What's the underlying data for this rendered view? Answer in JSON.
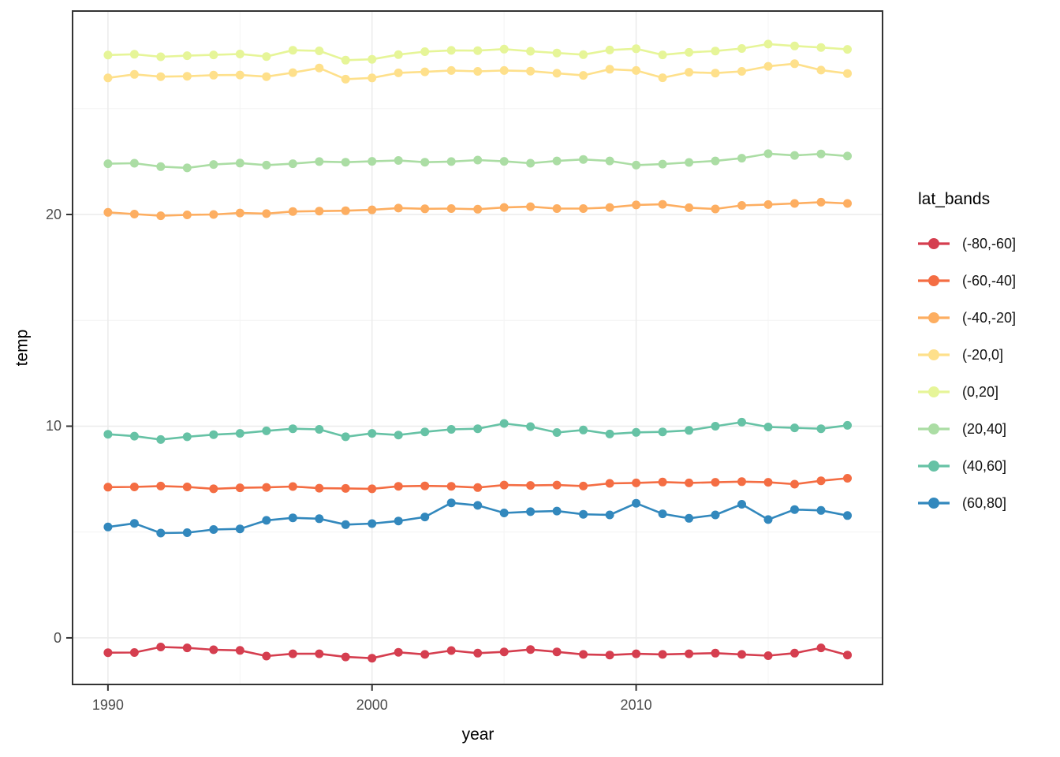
{
  "figure": {
    "background": "#ffffff"
  },
  "style": {
    "panel_border_color": "#333333",
    "panel_background": "#ffffff",
    "grid_major_color": "#ebebeb",
    "grid_minor_color": "#f4f4f4",
    "tick_mark_color": "#333333",
    "tick_label_color": "#4d4d4d",
    "axis_title_color": "#000000",
    "line_width": 2.6,
    "point_radius": 5.5
  },
  "legend": {
    "title": "lat_bands"
  },
  "chart_data": {
    "type": "line",
    "title": "",
    "xlabel": "year",
    "ylabel": "temp",
    "xlim": [
      1988.66,
      2019.33
    ],
    "ylim": [
      -2.2,
      29.61
    ],
    "x_ticks": [
      1990,
      2000,
      2010
    ],
    "x_minor_ticks": [
      1995,
      2005,
      2015
    ],
    "y_ticks": [
      0,
      10,
      20
    ],
    "y_minor_ticks": [
      5,
      15,
      25
    ],
    "grid": true,
    "legend_position": "right",
    "legend_title": "lat_bands",
    "x": [
      1990,
      1991,
      1992,
      1993,
      1994,
      1995,
      1996,
      1997,
      1998,
      1999,
      2000,
      2001,
      2002,
      2003,
      2004,
      2005,
      2006,
      2007,
      2008,
      2009,
      2010,
      2011,
      2012,
      2013,
      2014,
      2015,
      2016,
      2017,
      2018
    ],
    "series": [
      {
        "name": "(-80,-60]",
        "color": "#d53e4f",
        "values": [
          -0.7,
          -0.69,
          -0.43,
          -0.47,
          -0.56,
          -0.59,
          -0.86,
          -0.75,
          -0.75,
          -0.9,
          -0.96,
          -0.68,
          -0.78,
          -0.6,
          -0.72,
          -0.66,
          -0.55,
          -0.66,
          -0.78,
          -0.81,
          -0.75,
          -0.78,
          -0.75,
          -0.72,
          -0.78,
          -0.84,
          -0.72,
          -0.47,
          -0.81
        ]
      },
      {
        "name": "(-60,-40]",
        "color": "#f46d43",
        "values": [
          7.12,
          7.13,
          7.17,
          7.13,
          7.04,
          7.09,
          7.11,
          7.15,
          7.07,
          7.06,
          7.04,
          7.16,
          7.18,
          7.16,
          7.1,
          7.22,
          7.2,
          7.22,
          7.17,
          7.3,
          7.32,
          7.36,
          7.32,
          7.35,
          7.38,
          7.35,
          7.26,
          7.42,
          7.54
        ]
      },
      {
        "name": "(-40,-20]",
        "color": "#fdae61",
        "values": [
          20.1,
          20.02,
          19.94,
          19.98,
          20.0,
          20.07,
          20.04,
          20.14,
          20.16,
          20.18,
          20.22,
          20.3,
          20.27,
          20.28,
          20.25,
          20.33,
          20.37,
          20.28,
          20.28,
          20.33,
          20.45,
          20.48,
          20.32,
          20.26,
          20.43,
          20.47,
          20.52,
          20.58,
          20.52
        ]
      },
      {
        "name": "(-20,0]",
        "color": "#fee08b",
        "values": [
          26.45,
          26.62,
          26.51,
          26.53,
          26.58,
          26.59,
          26.51,
          26.7,
          26.92,
          26.39,
          26.45,
          26.69,
          26.74,
          26.8,
          26.76,
          26.8,
          26.77,
          26.67,
          26.57,
          26.86,
          26.8,
          26.46,
          26.72,
          26.68,
          26.76,
          27.0,
          27.12,
          26.82,
          26.66
        ]
      },
      {
        "name": "(0,20]",
        "color": "#e6f598",
        "values": [
          27.53,
          27.57,
          27.45,
          27.5,
          27.54,
          27.58,
          27.46,
          27.76,
          27.73,
          27.29,
          27.33,
          27.55,
          27.69,
          27.75,
          27.74,
          27.81,
          27.71,
          27.63,
          27.55,
          27.77,
          27.83,
          27.54,
          27.66,
          27.72,
          27.84,
          28.05,
          27.96,
          27.89,
          27.8
        ]
      },
      {
        "name": "(20,40]",
        "color": "#abdda4",
        "values": [
          22.4,
          22.42,
          22.26,
          22.2,
          22.36,
          22.43,
          22.33,
          22.4,
          22.5,
          22.47,
          22.51,
          22.55,
          22.47,
          22.5,
          22.57,
          22.51,
          22.42,
          22.53,
          22.6,
          22.53,
          22.33,
          22.38,
          22.46,
          22.53,
          22.66,
          22.87,
          22.79,
          22.86,
          22.76
        ]
      },
      {
        "name": "(40,60]",
        "color": "#66c2a5",
        "values": [
          9.62,
          9.53,
          9.37,
          9.5,
          9.6,
          9.66,
          9.78,
          9.88,
          9.85,
          9.5,
          9.66,
          9.58,
          9.73,
          9.85,
          9.88,
          10.13,
          9.98,
          9.7,
          9.82,
          9.63,
          9.71,
          9.73,
          9.8,
          10.0,
          10.19,
          9.96,
          9.92,
          9.88,
          10.04
        ]
      },
      {
        "name": "(60,80]",
        "color": "#3288bd",
        "values": [
          5.24,
          5.41,
          4.95,
          4.97,
          5.12,
          5.15,
          5.55,
          5.67,
          5.63,
          5.35,
          5.4,
          5.52,
          5.71,
          6.38,
          6.26,
          5.9,
          5.96,
          5.99,
          5.84,
          5.81,
          6.36,
          5.86,
          5.65,
          5.81,
          6.31,
          5.59,
          6.06,
          6.02,
          5.78
        ]
      }
    ]
  }
}
